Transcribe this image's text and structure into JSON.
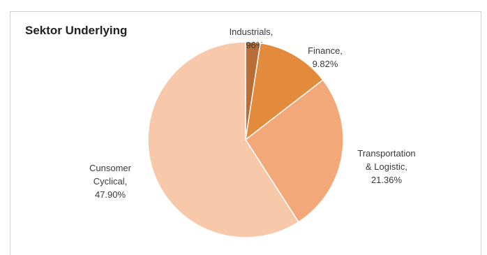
{
  "chart_data": {
    "type": "pie",
    "title": "Sektor Underlying",
    "slices": [
      {
        "name": "Industrials",
        "value": 1.96,
        "label": "1.96%",
        "color": "#b86e36"
      },
      {
        "name": "Finance",
        "value": 9.82,
        "label": "9.82%",
        "color": "#e38b3d"
      },
      {
        "name": "Transportation & Logistic",
        "value": 21.36,
        "label": "21.36%",
        "color": "#f2a878"
      },
      {
        "name": "Cunsomer Cyclical",
        "value": 47.9,
        "label": "47.90%",
        "color": "#f7c8a9"
      }
    ],
    "legend": "none"
  }
}
